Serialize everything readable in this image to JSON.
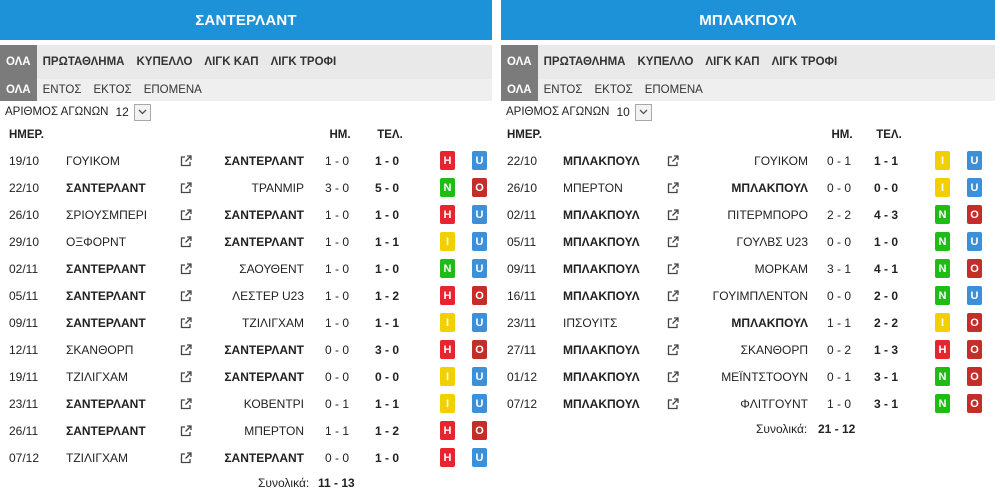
{
  "panels": [
    {
      "title": "ΣΑΝΤΕΡΛΑΝΤ",
      "tabs1": [
        "ΟΛΑ",
        "ΠΡΩΤΑΘΛΗΜΑ",
        "ΚΥΠΕΛΛΟ",
        "ΛΙΓΚ ΚΑΠ",
        "ΛΙΓΚ ΤΡΟΦΙ"
      ],
      "tabs2": [
        "ΟΛΑ",
        "ΕΝΤΟΣ",
        "ΕΚΤΟΣ",
        "ΕΠΟΜΕΝΑ"
      ],
      "count_label": "ΑΡΙΘΜΟΣ ΑΓΩΝΩΝ",
      "count_value": "12",
      "headers": {
        "date": "ΗΜΕΡ.",
        "ht": "ΗΜ.",
        "ft": "ΤΕΛ."
      },
      "team_bold": "ΣΑΝΤΕΡΛΑΝΤ",
      "matches": [
        {
          "date": "19/10",
          "home": "ΓΟΥΙΚΟΜ",
          "away": "ΣΑΝΤΕΡΛΑΝΤ",
          "ht": "1 - 0",
          "ft": "1 - 0",
          "res": "H",
          "ou": "U"
        },
        {
          "date": "22/10",
          "home": "ΣΑΝΤΕΡΛΑΝΤ",
          "away": "ΤΡΑΝΜΙΡ",
          "ht": "3 - 0",
          "ft": "5 - 0",
          "res": "N",
          "ou": "O"
        },
        {
          "date": "26/10",
          "home": "ΣΡΙΟΥΣΜΠΕΡΙ",
          "away": "ΣΑΝΤΕΡΛΑΝΤ",
          "ht": "1 - 0",
          "ft": "1 - 0",
          "res": "H",
          "ou": "U"
        },
        {
          "date": "29/10",
          "home": "ΟΞΦΟΡΝΤ",
          "away": "ΣΑΝΤΕΡΛΑΝΤ",
          "ht": "1 - 0",
          "ft": "1 - 1",
          "res": "I",
          "ou": "U"
        },
        {
          "date": "02/11",
          "home": "ΣΑΝΤΕΡΛΑΝΤ",
          "away": "ΣΑΟΥΘΕΝΤ",
          "ht": "1 - 0",
          "ft": "1 - 0",
          "res": "N",
          "ou": "U"
        },
        {
          "date": "05/11",
          "home": "ΣΑΝΤΕΡΛΑΝΤ",
          "away": "ΛΕΣΤΕΡ U23",
          "ht": "1 - 0",
          "ft": "1 - 2",
          "res": "H",
          "ou": "O"
        },
        {
          "date": "09/11",
          "home": "ΣΑΝΤΕΡΛΑΝΤ",
          "away": "ΤΖΙΛΙΓΧΑΜ",
          "ht": "1 - 0",
          "ft": "1 - 1",
          "res": "I",
          "ou": "U"
        },
        {
          "date": "12/11",
          "home": "ΣΚΑΝΘΟΡΠ",
          "away": "ΣΑΝΤΕΡΛΑΝΤ",
          "ht": "0 - 0",
          "ft": "3 - 0",
          "res": "H",
          "ou": "O"
        },
        {
          "date": "19/11",
          "home": "ΤΖΙΛΙΓΧΑΜ",
          "away": "ΣΑΝΤΕΡΛΑΝΤ",
          "ht": "0 - 0",
          "ft": "0 - 0",
          "res": "I",
          "ou": "U"
        },
        {
          "date": "23/11",
          "home": "ΣΑΝΤΕΡΛΑΝΤ",
          "away": "ΚΟΒΕΝΤΡΙ",
          "ht": "0 - 1",
          "ft": "1 - 1",
          "res": "I",
          "ou": "U"
        },
        {
          "date": "26/11",
          "home": "ΣΑΝΤΕΡΛΑΝΤ",
          "away": "ΜΠΕΡΤΟΝ",
          "ht": "1 - 1",
          "ft": "1 - 2",
          "res": "H",
          "ou": "O"
        },
        {
          "date": "07/12",
          "home": "ΤΖΙΛΙΓΧΑΜ",
          "away": "ΣΑΝΤΕΡΛΑΝΤ",
          "ht": "0 - 0",
          "ft": "1 - 0",
          "res": "H",
          "ou": "U"
        }
      ],
      "totals_label": "Συνολικά:",
      "totals_value": "11 - 13"
    },
    {
      "title": "ΜΠΛΑΚΠΟΥΛ",
      "tabs1": [
        "ΟΛΑ",
        "ΠΡΩΤΑΘΛΗΜΑ",
        "ΚΥΠΕΛΛΟ",
        "ΛΙΓΚ ΚΑΠ",
        "ΛΙΓΚ ΤΡΟΦΙ"
      ],
      "tabs2": [
        "ΟΛΑ",
        "ΕΝΤΟΣ",
        "ΕΚΤΟΣ",
        "ΕΠΟΜΕΝΑ"
      ],
      "count_label": "ΑΡΙΘΜΟΣ ΑΓΩΝΩΝ",
      "count_value": "10",
      "headers": {
        "date": "ΗΜΕΡ.",
        "ht": "ΗΜ.",
        "ft": "ΤΕΛ."
      },
      "team_bold": "ΜΠΛΑΚΠΟΥΛ",
      "matches": [
        {
          "date": "22/10",
          "home": "ΜΠΛΑΚΠΟΥΛ",
          "away": "ΓΟΥΙΚΟΜ",
          "ht": "0 - 1",
          "ft": "1 - 1",
          "res": "I",
          "ou": "U"
        },
        {
          "date": "26/10",
          "home": "ΜΠΕΡΤΟΝ",
          "away": "ΜΠΛΑΚΠΟΥΛ",
          "ht": "0 - 0",
          "ft": "0 - 0",
          "res": "I",
          "ou": "U"
        },
        {
          "date": "02/11",
          "home": "ΜΠΛΑΚΠΟΥΛ",
          "away": "ΠΙΤΕΡΜΠΟΡΟ",
          "ht": "2 - 2",
          "ft": "4 - 3",
          "res": "N",
          "ou": "O"
        },
        {
          "date": "05/11",
          "home": "ΜΠΛΑΚΠΟΥΛ",
          "away": "ΓΟΥΛΒΣ U23",
          "ht": "0 - 0",
          "ft": "1 - 0",
          "res": "N",
          "ou": "U"
        },
        {
          "date": "09/11",
          "home": "ΜΠΛΑΚΠΟΥΛ",
          "away": "ΜΟΡΚΑΜ",
          "ht": "3 - 1",
          "ft": "4 - 1",
          "res": "N",
          "ou": "O"
        },
        {
          "date": "16/11",
          "home": "ΜΠΛΑΚΠΟΥΛ",
          "away": "ΓΟΥΙΜΠΛΕΝΤΟΝ",
          "ht": "0 - 0",
          "ft": "2 - 0",
          "res": "N",
          "ou": "U"
        },
        {
          "date": "23/11",
          "home": "ΙΠΣΟΥΙΤΣ",
          "away": "ΜΠΛΑΚΠΟΥΛ",
          "ht": "1 - 1",
          "ft": "2 - 2",
          "res": "I",
          "ou": "O"
        },
        {
          "date": "27/11",
          "home": "ΜΠΛΑΚΠΟΥΛ",
          "away": "ΣΚΑΝΘΟΡΠ",
          "ht": "0 - 2",
          "ft": "1 - 3",
          "res": "H",
          "ou": "O"
        },
        {
          "date": "01/12",
          "home": "ΜΠΛΑΚΠΟΥΛ",
          "away": "ΜΕΪΝΤΣΤΟΟΥΝ",
          "ht": "0 - 1",
          "ft": "3 - 1",
          "res": "N",
          "ou": "O"
        },
        {
          "date": "07/12",
          "home": "ΜΠΛΑΚΠΟΥΛ",
          "away": "ΦΛΙΤΓΟΥΝΤ",
          "ht": "1 - 0",
          "ft": "3 - 1",
          "res": "N",
          "ou": "O"
        }
      ],
      "totals_label": "Συνολικά:",
      "totals_value": "21 - 12"
    }
  ],
  "colors": {
    "header_blue": "#1e92d8",
    "loss_red": "#e8242f",
    "win_green": "#1fbc16",
    "draw_yellow": "#f2d000",
    "under_blue": "#3c8fd9",
    "over_darkred": "#c42d2a"
  },
  "icons": {
    "match_link": "external-link-icon",
    "dropdown": "chevron-down-icon"
  }
}
